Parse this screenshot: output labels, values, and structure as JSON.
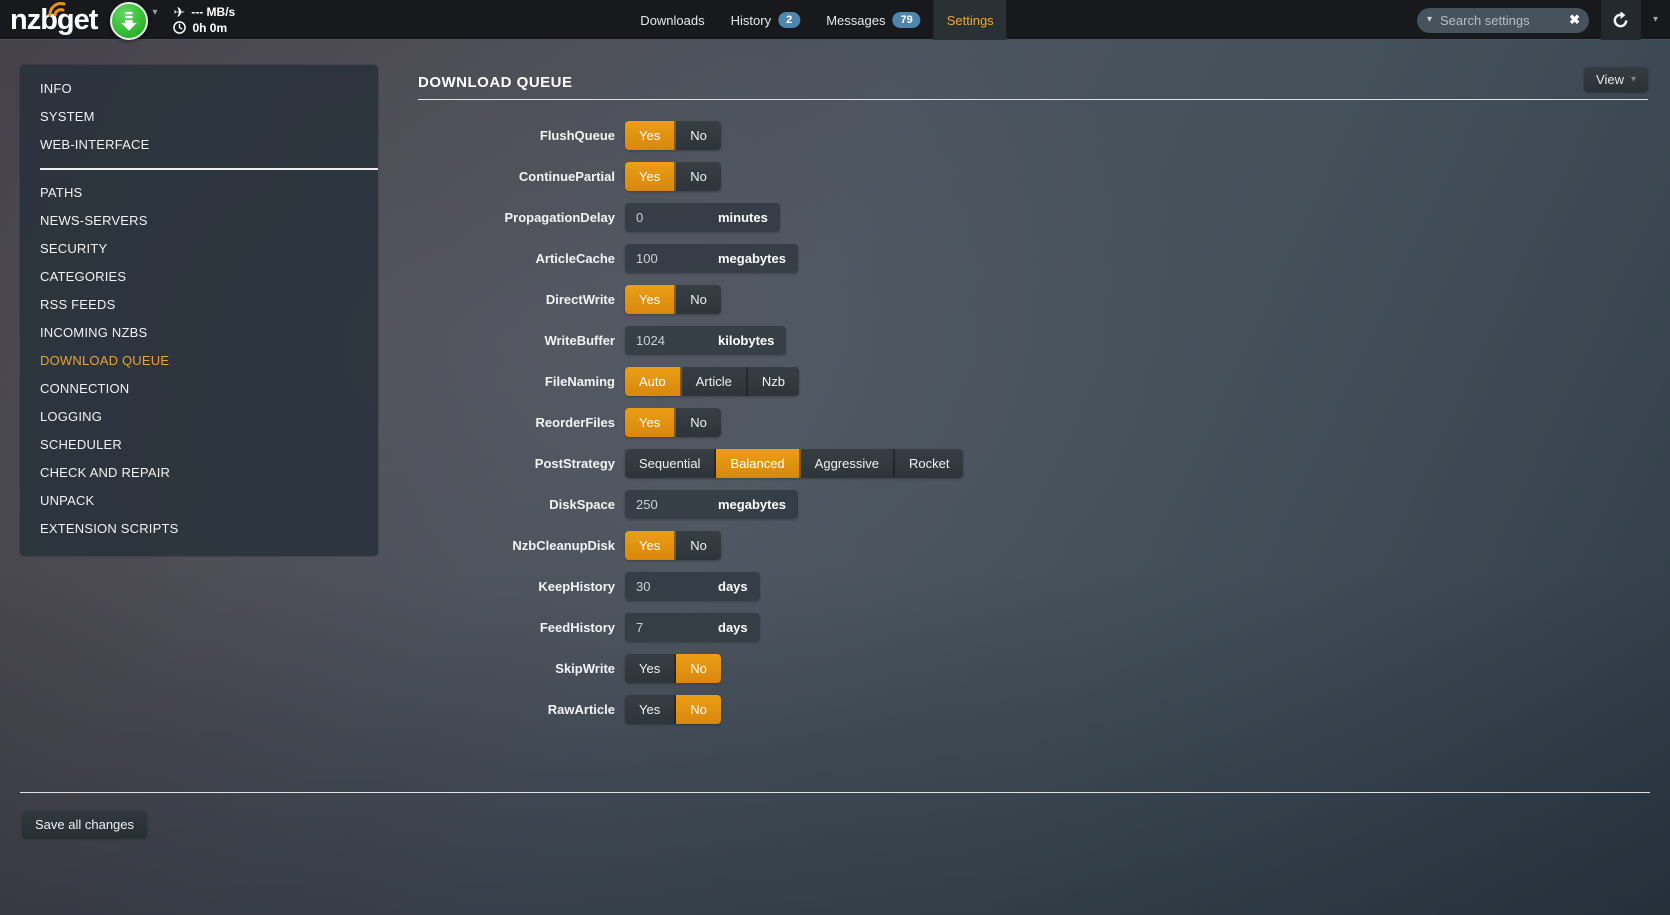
{
  "navbar": {
    "logo": "nzbget",
    "speed": "--- MB/s",
    "time_left": "0h 0m",
    "tabs": [
      {
        "label": "Downloads",
        "badge": null,
        "active": false
      },
      {
        "label": "History",
        "badge": "2",
        "active": false
      },
      {
        "label": "Messages",
        "badge": "79",
        "active": false
      },
      {
        "label": "Settings",
        "badge": null,
        "active": true
      }
    ],
    "search": {
      "placeholder": "Search settings"
    }
  },
  "sidebar": {
    "groups": [
      [
        "INFO",
        "SYSTEM",
        "WEB-INTERFACE"
      ],
      [
        "PATHS",
        "NEWS-SERVERS",
        "SECURITY",
        "CATEGORIES",
        "RSS FEEDS",
        "INCOMING NZBS",
        "DOWNLOAD QUEUE",
        "CONNECTION",
        "LOGGING",
        "SCHEDULER",
        "CHECK AND REPAIR",
        "UNPACK",
        "EXTENSION SCRIPTS"
      ]
    ],
    "active_item": "DOWNLOAD QUEUE"
  },
  "main": {
    "title": "DOWNLOAD QUEUE",
    "view_button": "View",
    "rows": [
      {
        "label": "FlushQueue",
        "type": "toggle",
        "options": [
          "Yes",
          "No"
        ],
        "selected": "Yes"
      },
      {
        "label": "ContinuePartial",
        "type": "toggle",
        "options": [
          "Yes",
          "No"
        ],
        "selected": "Yes"
      },
      {
        "label": "PropagationDelay",
        "type": "number",
        "value": "0",
        "unit": "minutes"
      },
      {
        "label": "ArticleCache",
        "type": "number",
        "value": "100",
        "unit": "megabytes"
      },
      {
        "label": "DirectWrite",
        "type": "toggle",
        "options": [
          "Yes",
          "No"
        ],
        "selected": "Yes"
      },
      {
        "label": "WriteBuffer",
        "type": "number",
        "value": "1024",
        "unit": "kilobytes"
      },
      {
        "label": "FileNaming",
        "type": "toggle",
        "options": [
          "Auto",
          "Article",
          "Nzb"
        ],
        "selected": "Auto"
      },
      {
        "label": "ReorderFiles",
        "type": "toggle",
        "options": [
          "Yes",
          "No"
        ],
        "selected": "Yes"
      },
      {
        "label": "PostStrategy",
        "type": "toggle",
        "options": [
          "Sequential",
          "Balanced",
          "Aggressive",
          "Rocket"
        ],
        "selected": "Balanced"
      },
      {
        "label": "DiskSpace",
        "type": "number",
        "value": "250",
        "unit": "megabytes"
      },
      {
        "label": "NzbCleanupDisk",
        "type": "toggle",
        "options": [
          "Yes",
          "No"
        ],
        "selected": "Yes"
      },
      {
        "label": "KeepHistory",
        "type": "number",
        "value": "30",
        "unit": "days"
      },
      {
        "label": "FeedHistory",
        "type": "number",
        "value": "7",
        "unit": "days"
      },
      {
        "label": "SkipWrite",
        "type": "toggle",
        "options": [
          "Yes",
          "No"
        ],
        "selected": "No"
      },
      {
        "label": "RawArticle",
        "type": "toggle",
        "options": [
          "Yes",
          "No"
        ],
        "selected": "No"
      }
    ],
    "save_button": "Save all changes"
  },
  "colors": {
    "accent_orange": "#e8960f",
    "active_tab_text": "#f0a62f",
    "badge_blue": "#4e86ae",
    "download_green": "#2ab42a"
  }
}
